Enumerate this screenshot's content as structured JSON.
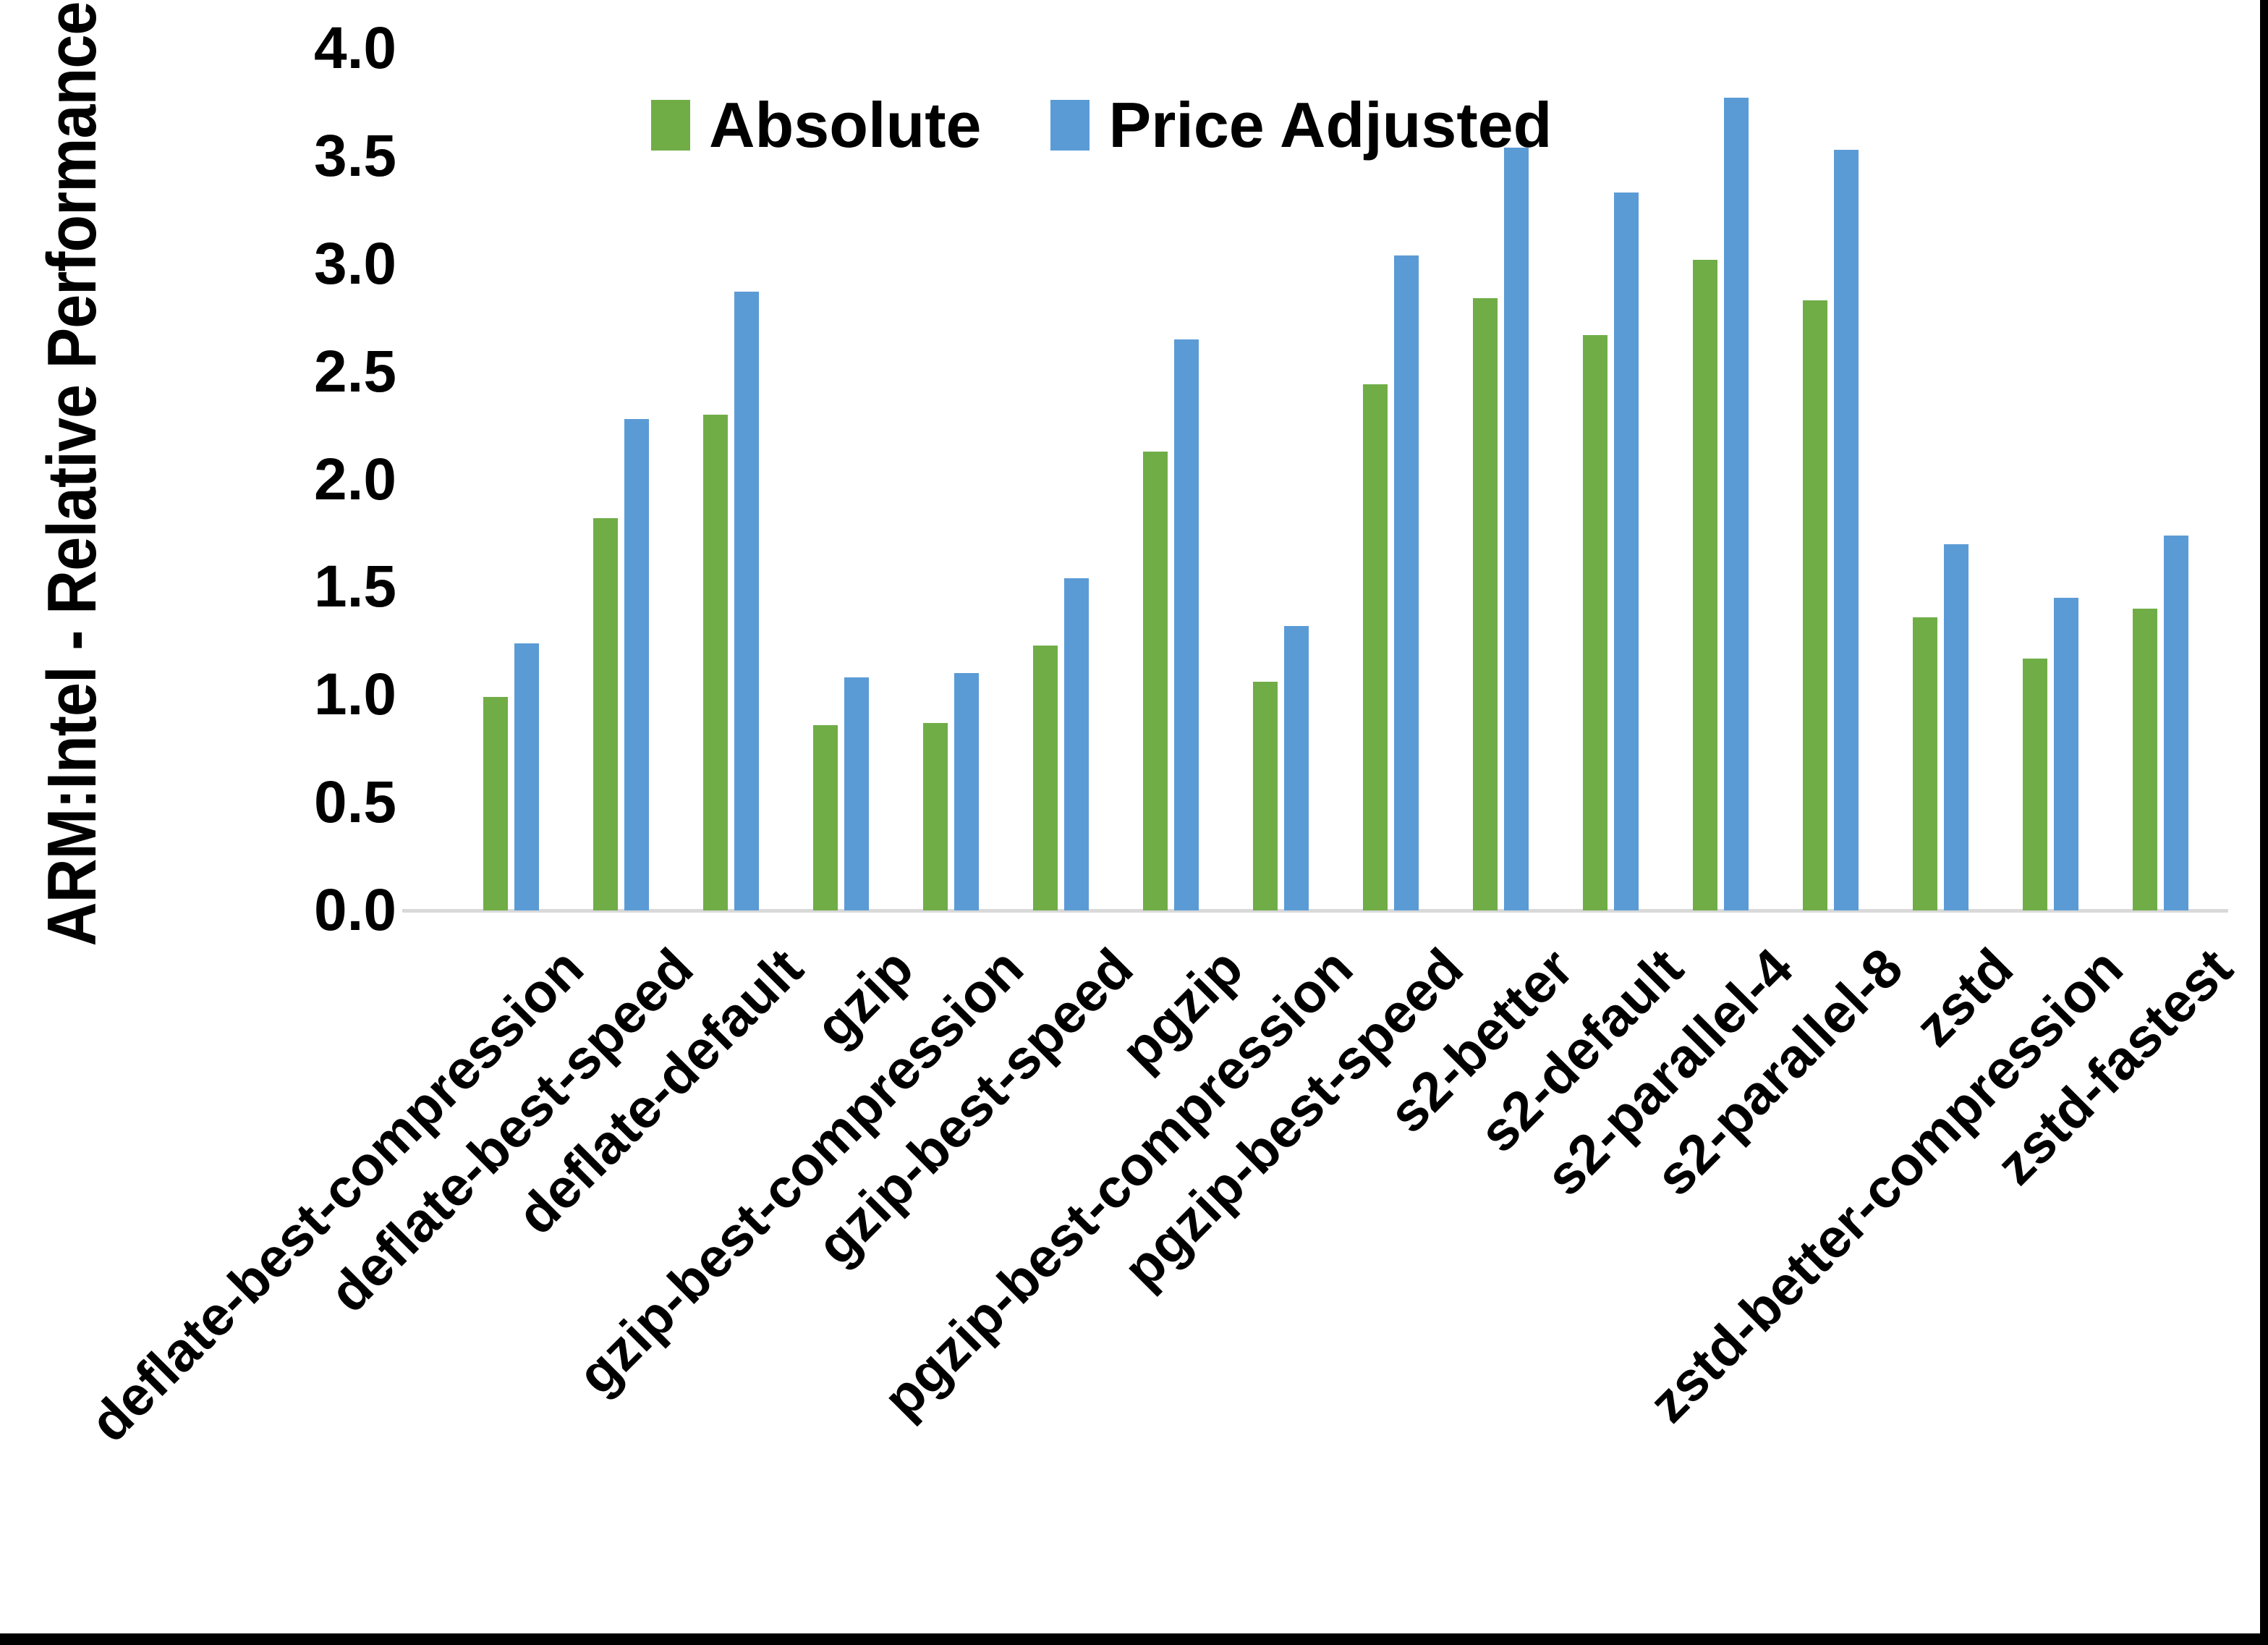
{
  "chart_data": {
    "type": "bar",
    "title": "",
    "xlabel": "",
    "ylabel": "ARM:Intel - Relative Performance",
    "ylim": [
      0.0,
      4.0
    ],
    "ytick_step": 0.5,
    "ytick_labels": [
      "0.0",
      "0.5",
      "1.0",
      "1.5",
      "2.0",
      "2.5",
      "3.0",
      "3.5",
      "4.0"
    ],
    "grid": false,
    "legend_position": "top-center",
    "background_color": "#ffffff",
    "axis_line_color": "#d9d9d9",
    "categories": [
      "deflate-best-compression",
      "deflate-best-speed",
      "deflate-default",
      "gzip",
      "gzip-best-compression",
      "gzip-best-speed",
      "pgzip",
      "pgzip-best-compression",
      "pgzip-best-speed",
      "s2-better",
      "s2-default",
      "s2-parallel-4",
      "s2-parallel-8",
      "zstd",
      "zstd-better-compression",
      "zstd-fastest"
    ],
    "series": [
      {
        "name": "Absolute",
        "color": "#70AD47",
        "values": [
          0.99,
          1.82,
          2.3,
          0.86,
          0.87,
          1.23,
          2.13,
          1.06,
          2.44,
          2.84,
          2.67,
          3.02,
          2.83,
          1.36,
          1.17,
          1.4
        ]
      },
      {
        "name": "Price Adjusted",
        "color": "#5B9BD5",
        "values": [
          1.24,
          2.28,
          2.87,
          1.08,
          1.1,
          1.54,
          2.65,
          1.32,
          3.04,
          3.54,
          3.33,
          3.77,
          3.53,
          1.7,
          1.45,
          1.74
        ]
      }
    ]
  }
}
